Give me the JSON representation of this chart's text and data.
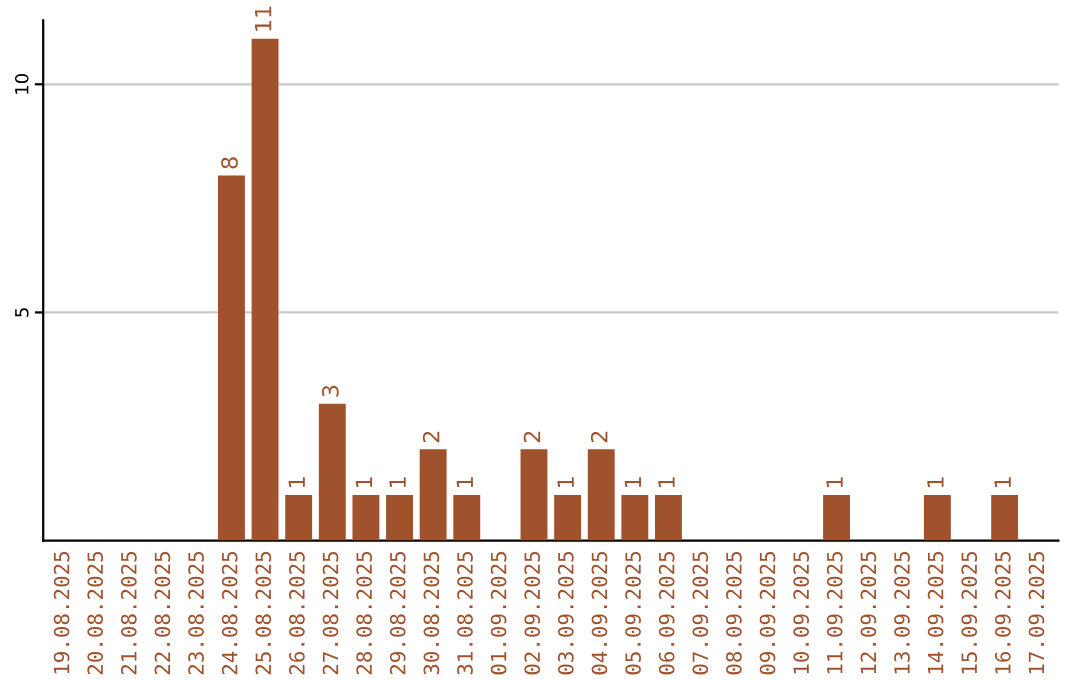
{
  "chart_data": {
    "type": "bar",
    "categories": [
      "19.08.2025",
      "20.08.2025",
      "21.08.2025",
      "22.08.2025",
      "23.08.2025",
      "24.08.2025",
      "25.08.2025",
      "26.08.2025",
      "27.08.2025",
      "28.08.2025",
      "29.08.2025",
      "30.08.2025",
      "31.08.2025",
      "01.09.2025",
      "02.09.2025",
      "03.09.2025",
      "04.09.2025",
      "05.09.2025",
      "06.09.2025",
      "07.09.2025",
      "08.09.2025",
      "09.09.2025",
      "10.09.2025",
      "11.09.2025",
      "12.09.2025",
      "13.09.2025",
      "14.09.2025",
      "15.09.2025",
      "16.09.2025",
      "17.09.2025"
    ],
    "values": [
      0,
      0,
      0,
      0,
      0,
      8,
      11,
      1,
      3,
      1,
      1,
      2,
      1,
      0,
      2,
      1,
      2,
      1,
      1,
      0,
      0,
      0,
      0,
      1,
      0,
      0,
      1,
      0,
      1,
      0
    ],
    "value_labels": [
      null,
      null,
      null,
      null,
      null,
      "8",
      "11",
      "1",
      "3",
      "1",
      "1",
      "2",
      "1",
      null,
      "2",
      "1",
      "2",
      "1",
      "1",
      null,
      null,
      null,
      null,
      "1",
      null,
      null,
      "1",
      null,
      "1",
      null
    ],
    "color": "#a0522d",
    "ylim": [
      0,
      11.4
    ],
    "yticks": [
      5,
      10
    ],
    "grid": "y"
  }
}
